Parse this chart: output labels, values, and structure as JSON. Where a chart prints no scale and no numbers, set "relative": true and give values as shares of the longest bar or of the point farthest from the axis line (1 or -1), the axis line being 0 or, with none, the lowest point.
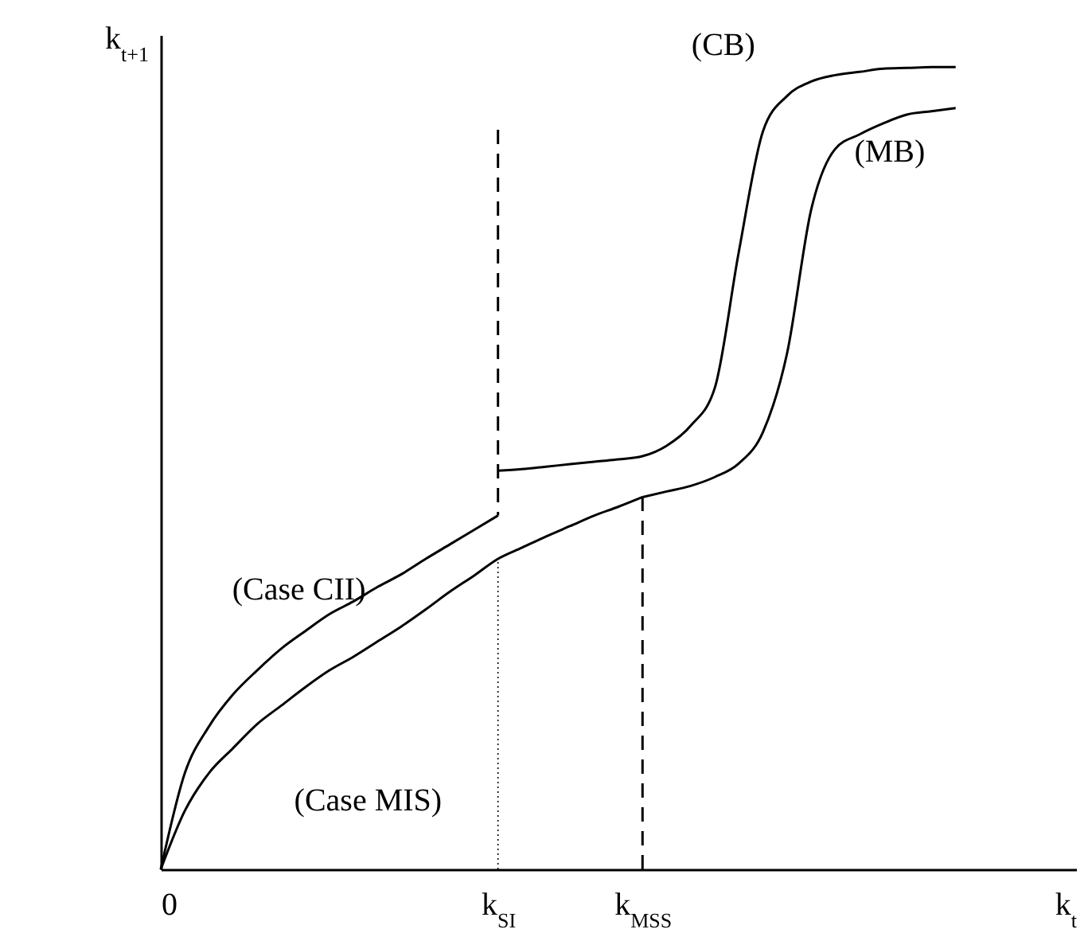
{
  "chart_data": {
    "type": "line",
    "relative": true,
    "xlabel": "k$_{t}$",
    "ylabel": "k$_{t+1}$",
    "categories": [
      "0",
      null,
      null,
      null,
      null,
      null,
      null,
      null,
      null,
      null,
      null,
      null,
      null,
      null,
      "k$_{SI}$",
      null,
      null,
      null,
      null,
      null,
      "k$_{MSS}$",
      null,
      null,
      null,
      null,
      null,
      null,
      null,
      null,
      null,
      null,
      null,
      null,
      null,
      null,
      null,
      null,
      null,
      null
    ],
    "tick_labels": "x",
    "marker": "none",
    "line_style": "solid",
    "grid": false,
    "legend": false,
    "series": [
      {
        "name": "(Case CII)",
        "color": "#000000",
        "values": [
          0,
          0.12,
          0.178,
          0.218,
          0.248,
          0.275,
          0.297,
          0.318,
          0.334,
          0.352,
          0.368,
          0.387,
          0.405,
          0.423,
          0.441,
          null,
          null,
          null,
          null,
          null,
          null,
          null,
          null,
          null,
          null,
          null,
          null,
          null,
          null,
          null,
          null,
          null,
          null,
          null,
          null,
          null,
          null,
          null,
          null
        ]
      },
      {
        "name": "(Case MIS)",
        "color": "#000000",
        "values": [
          0,
          0.073,
          0.12,
          0.151,
          0.181,
          0.204,
          0.227,
          0.248,
          0.265,
          0.284,
          0.303,
          0.324,
          0.346,
          0.366,
          0.387,
          0.401,
          0.415,
          0.428,
          0.441,
          0.452,
          0.464,
          null,
          null,
          null,
          null,
          null,
          null,
          null,
          null,
          null,
          null,
          null,
          null,
          null,
          null,
          null,
          null,
          null,
          null
        ]
      },
      {
        "name": "(CB)",
        "color": "#000000",
        "values": [
          null,
          null,
          null,
          null,
          null,
          null,
          null,
          null,
          null,
          null,
          null,
          null,
          null,
          null,
          0.497,
          0.499,
          0.502,
          0.505,
          0.508,
          0.511,
          0.515,
          0.528,
          0.553,
          0.6,
          0.77,
          0.92,
          0.964,
          0.982,
          0.99,
          0.994,
          0.998,
          0.999,
          1,
          1,
          null,
          null,
          null,
          null,
          null
        ]
      },
      {
        "name": "(MB)",
        "color": "#000000",
        "values": [
          null,
          null,
          null,
          null,
          null,
          null,
          null,
          null,
          null,
          null,
          null,
          null,
          null,
          null,
          null,
          null,
          null,
          null,
          null,
          null,
          0.464,
          0.471,
          0.478,
          0.489,
          0.506,
          0.545,
          0.643,
          0.822,
          0.898,
          0.916,
          0.93,
          0.941,
          0.945,
          0.949,
          null,
          null,
          null,
          null,
          null
        ]
      },
      {
        "color": "#000000",
        "line_style": "dashed",
        "x": [
          "k$_{SI}$",
          "k$_{SI}$"
        ],
        "values": [
          0.922,
          0.441
        ]
      },
      {
        "color": "#000000",
        "line_style": "dashed",
        "x": [
          "k$_{MSS}$",
          "k$_{MSS}$"
        ],
        "values": [
          0,
          0.464
        ]
      },
      {
        "color": "#000000",
        "line_style": "dotted",
        "x": [
          "k$_{SI}$",
          "k$_{SI}$"
        ],
        "values": [
          0,
          0.387
        ]
      }
    ]
  }
}
